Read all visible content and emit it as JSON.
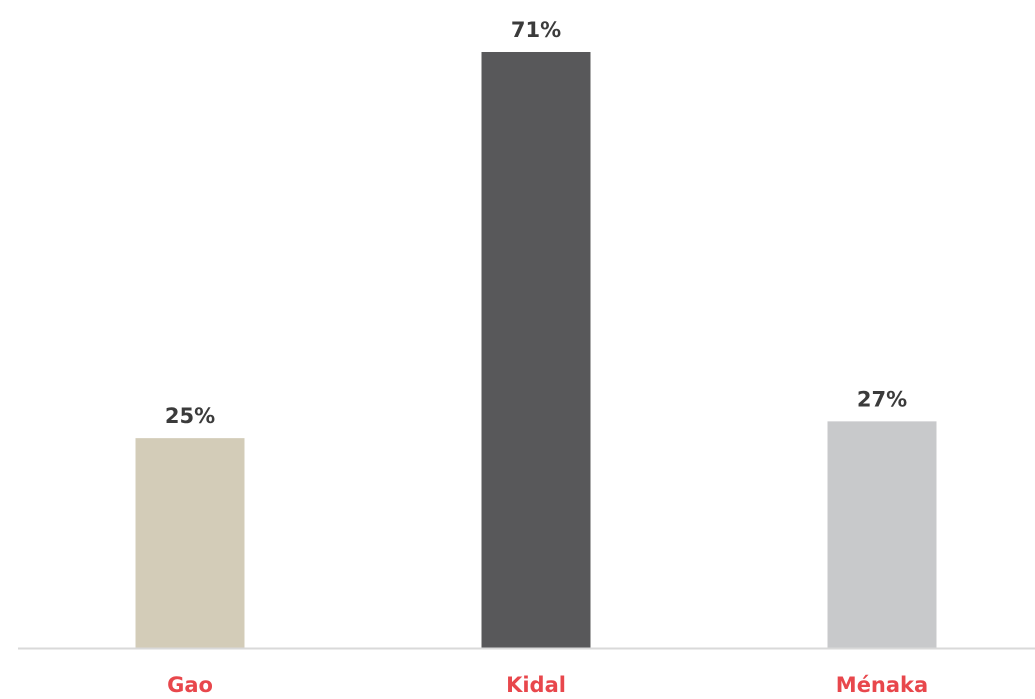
{
  "chart_data": {
    "type": "bar",
    "categories": [
      "Gao",
      "Kidal",
      "Ménaka"
    ],
    "values": [
      25,
      71,
      27
    ],
    "value_labels": [
      "25%",
      "71%",
      "27%"
    ],
    "bar_colors": [
      "#d3ccb8",
      "#58585a",
      "#c8c9cb"
    ],
    "category_label_color": "#e8474c",
    "axis_line_color": "#d9d9d9",
    "ylim": [
      0,
      75
    ],
    "grid": false,
    "legend": "none",
    "title": "",
    "xlabel": "",
    "ylabel": ""
  }
}
